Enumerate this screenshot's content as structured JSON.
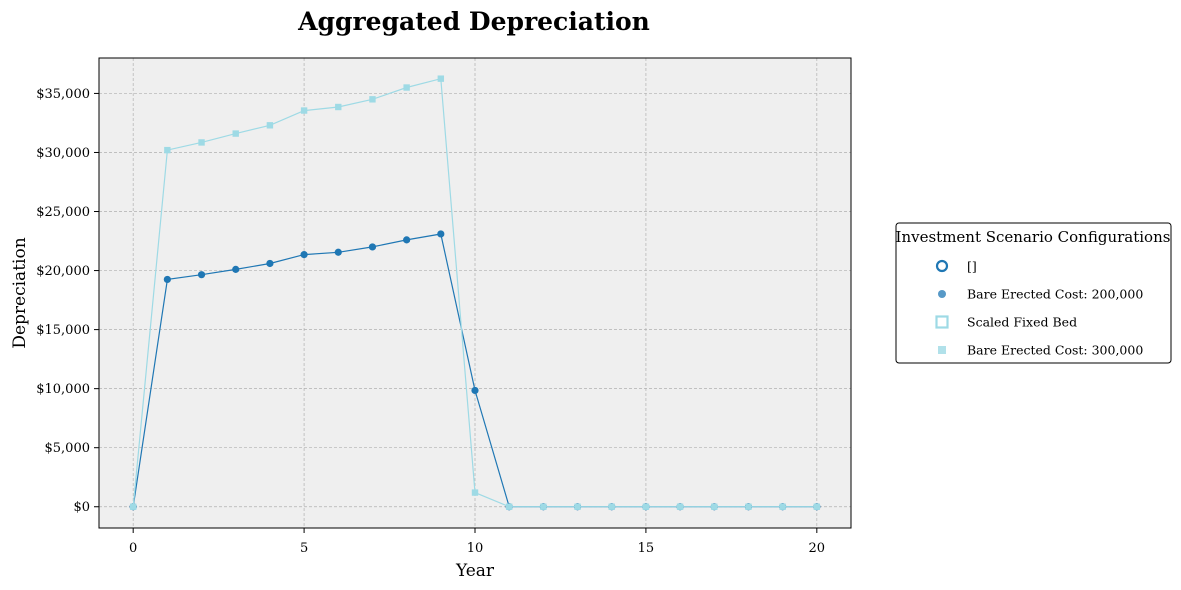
{
  "chart_data": {
    "type": "line",
    "title": "Aggregated Depreciation",
    "xlabel": "Year",
    "ylabel": "Depreciation",
    "xlim": [
      -1,
      21
    ],
    "ylim": [
      -1800,
      38000
    ],
    "xticks": [
      0,
      5,
      10,
      15,
      20
    ],
    "yticks": [
      0,
      5000,
      10000,
      15000,
      20000,
      25000,
      30000,
      35000
    ],
    "ytick_labels": [
      "$0",
      "$5,000",
      "$10,000",
      "$15,000",
      "$20,000",
      "$25,000",
      "$30,000",
      "$35,000"
    ],
    "grid": true,
    "legend": {
      "title": "Investment Scenario Configurations",
      "placement": "right",
      "entries": [
        {
          "label": "[]",
          "marker": "circle-open",
          "color": "#1f77b4"
        },
        {
          "label": "Bare Erected Cost: 200,000",
          "marker": "circle",
          "color": "#1f77b4"
        },
        {
          "label": "Scaled Fixed Bed",
          "marker": "square-open",
          "color": "#9edae5"
        },
        {
          "label": "Bare Erected Cost: 300,000",
          "marker": "square",
          "color": "#9edae5"
        }
      ]
    },
    "x": [
      0,
      1,
      2,
      3,
      4,
      5,
      6,
      7,
      8,
      9,
      10,
      11,
      12,
      13,
      14,
      15,
      16,
      17,
      18,
      19,
      20
    ],
    "series": [
      {
        "name": "Bare Erected Cost: 200,000",
        "marker": "circle",
        "color": "#1f77b4",
        "values": [
          0,
          19250,
          19650,
          20100,
          20600,
          21350,
          21550,
          22000,
          22600,
          23100,
          9850,
          0,
          0,
          0,
          0,
          0,
          0,
          0,
          0,
          0,
          0
        ]
      },
      {
        "name": "Bare Erected Cost: 300,000",
        "marker": "square",
        "color": "#9edae5",
        "values": [
          0,
          30200,
          30850,
          31600,
          32300,
          33550,
          33850,
          34500,
          35500,
          36250,
          1200,
          0,
          0,
          0,
          0,
          0,
          0,
          0,
          0,
          0,
          0
        ]
      }
    ]
  }
}
